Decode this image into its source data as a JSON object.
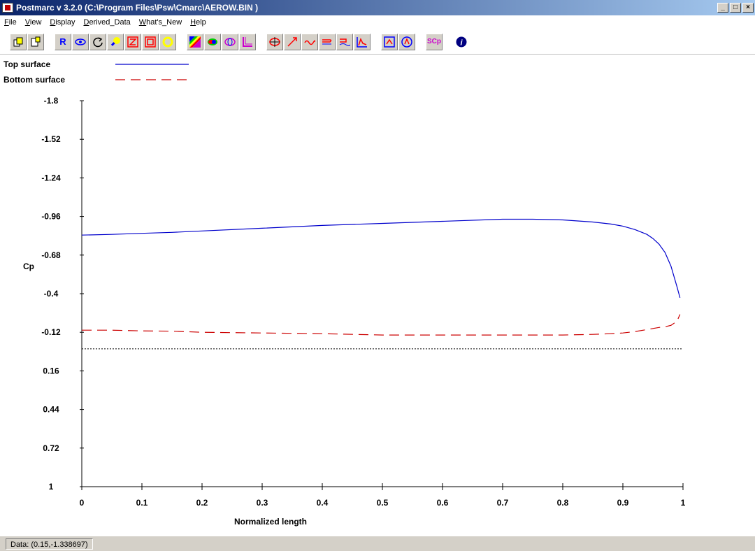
{
  "window": {
    "title": "Postmarc v 3.2.0 (C:\\Program Files\\Psw\\Cmarc\\AEROW.BIN )",
    "minimize_icon": "minimize-icon",
    "maximize_icon": "restore-icon",
    "close_icon": "close-icon"
  },
  "menu": {
    "items": [
      {
        "label": "File",
        "accel": "F",
        "rest": "ile"
      },
      {
        "label": "View",
        "accel": "V",
        "rest": "iew"
      },
      {
        "label": "Display",
        "accel": "D",
        "rest": "isplay"
      },
      {
        "label": "Derived_Data",
        "accel": "D",
        "rest": "erived_Data"
      },
      {
        "label": "What's_New",
        "accel": "W",
        "rest": "hat's_New"
      },
      {
        "label": "Help",
        "accel": "H",
        "rest": "elp"
      }
    ]
  },
  "toolbar": {
    "icons": [
      "copy-icon",
      "paste-icon",
      "r-icon",
      "eye-icon",
      "rotate-icon",
      "zoom-icon",
      "z-icon",
      "square-icon",
      "circle-icon",
      "color-map-icon",
      "shaded-icon",
      "wire-icon",
      "axes-icon",
      "section-icon",
      "vector-icon",
      "wave-icon",
      "streamline-icon",
      "cut-icon",
      "graph-icon",
      "frame-icon",
      "globe-icon",
      "integrate-cp-icon",
      "info-icon"
    ],
    "r_label": "R",
    "sc_label": "SCp",
    "info_label": "i",
    "accent_colors": {
      "red": "#ff0000",
      "yellow": "#ffff00",
      "blue": "#0000ff",
      "magenta": "#cc00cc",
      "navy": "#000080"
    }
  },
  "legend": [
    {
      "label": "Top surface",
      "color": "#0000cc",
      "style": "solid"
    },
    {
      "label": "Bottom surface",
      "color": "#cc0000",
      "style": "dashed"
    }
  ],
  "chart_data": {
    "type": "line",
    "title": "",
    "xlabel": "Normalized length",
    "ylabel": "Cp",
    "xlim": [
      0,
      1
    ],
    "ylim": [
      -1.8,
      1
    ],
    "y_inverted": true,
    "x_ticks": [
      "0",
      "0.1",
      "0.2",
      "0.3",
      "0.4",
      "0.5",
      "0.6",
      "0.7",
      "0.8",
      "0.9",
      "1"
    ],
    "y_ticks": [
      "-1.8",
      "-1.52",
      "-1.24",
      "-0.96",
      "-0.68",
      "-0.4",
      "-0.12",
      "0.16",
      "0.44",
      "0.72",
      "1"
    ],
    "reference_line": {
      "y": 0.0,
      "style": "dotted",
      "color": "#000000"
    },
    "legend_position": "top-left",
    "series": [
      {
        "name": "Top surface",
        "color": "#0000cc",
        "x": [
          0,
          0.05,
          0.1,
          0.15,
          0.2,
          0.3,
          0.4,
          0.5,
          0.6,
          0.7,
          0.75,
          0.8,
          0.85,
          0.88,
          0.9,
          0.92,
          0.94,
          0.95,
          0.96,
          0.97,
          0.98,
          0.99,
          0.995
        ],
        "values": [
          -0.825,
          -0.83,
          -0.838,
          -0.845,
          -0.855,
          -0.875,
          -0.895,
          -0.91,
          -0.925,
          -0.94,
          -0.94,
          -0.935,
          -0.92,
          -0.905,
          -0.89,
          -0.865,
          -0.83,
          -0.8,
          -0.76,
          -0.7,
          -0.6,
          -0.45,
          -0.37
        ]
      },
      {
        "name": "Bottom surface",
        "color": "#cc0000",
        "x": [
          0,
          0.05,
          0.1,
          0.15,
          0.2,
          0.3,
          0.4,
          0.5,
          0.6,
          0.7,
          0.75,
          0.8,
          0.85,
          0.88,
          0.9,
          0.92,
          0.94,
          0.96,
          0.97,
          0.98,
          0.99,
          0.995
        ],
        "values": [
          -0.135,
          -0.135,
          -0.13,
          -0.128,
          -0.12,
          -0.115,
          -0.11,
          -0.1,
          -0.1,
          -0.1,
          -0.1,
          -0.1,
          -0.105,
          -0.11,
          -0.115,
          -0.125,
          -0.14,
          -0.155,
          -0.16,
          -0.17,
          -0.2,
          -0.25
        ]
      }
    ]
  },
  "status": {
    "text": "Data: (0.15,-1.338697)"
  }
}
